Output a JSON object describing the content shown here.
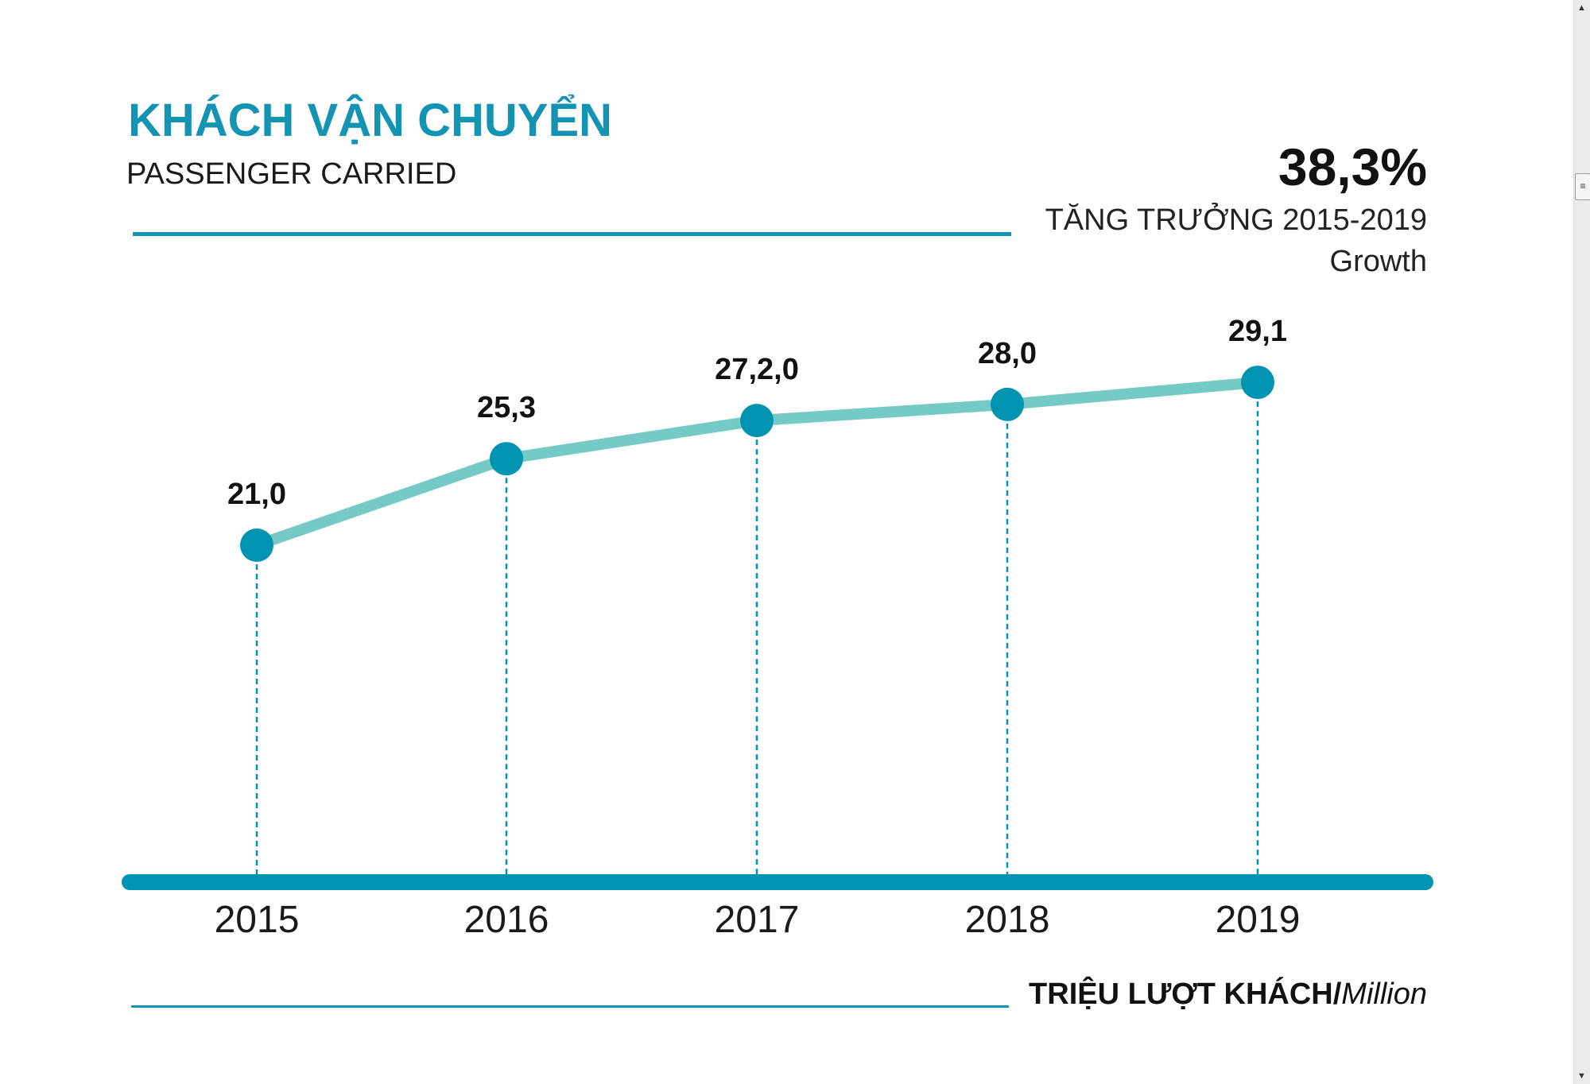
{
  "header": {
    "title": "KHÁCH VẬN CHUYỂN",
    "subtitle": "PASSENGER CARRIED"
  },
  "growth": {
    "value": "38,3%",
    "label": "TĂNG TRƯỞNG 2015-2019",
    "sublabel": "Growth"
  },
  "unit": {
    "bold": "TRIỆU LƯỢT KHÁCH/",
    "italic": "Million"
  },
  "colors": {
    "title": "#1593b3",
    "line": "#75cac5",
    "marker": "#0093b2",
    "baseline": "#0093b2"
  },
  "chart_data": {
    "type": "line",
    "categories": [
      "2015",
      "2016",
      "2017",
      "2018",
      "2019"
    ],
    "values": [
      21.0,
      25.3,
      27.2,
      28.0,
      29.1
    ],
    "data_labels": [
      "21,0",
      "25,3",
      "27,2,0",
      "28,0",
      "29,1"
    ],
    "title": "KHÁCH VẬN CHUYỂN",
    "subtitle": "PASSENGER CARRIED",
    "ylabel": "TRIỆU LƯỢT KHÁCH/Million",
    "grid": false,
    "drop_lines": "dashed"
  },
  "scrollbar": {
    "up_icon": "triangle-up",
    "thumb_icon": "grip-lines",
    "down_icon": "triangle-down"
  }
}
